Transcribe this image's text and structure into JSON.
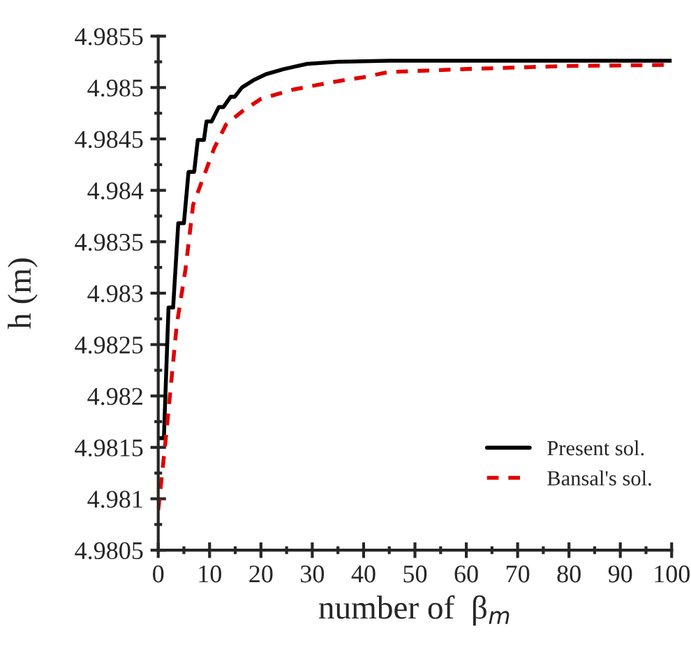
{
  "chart_data": {
    "type": "line",
    "xlabel": "number of  β$_{m}$",
    "ylabel": "h (m)",
    "xlim": [
      0,
      100
    ],
    "ylim": [
      4.9805,
      4.9855
    ],
    "xticks": [
      0,
      {
        "value": 5,
        "label": null
      },
      10,
      {
        "value": 15,
        "label": null
      },
      20,
      {
        "value": 25,
        "label": null
      },
      30,
      {
        "value": 35,
        "label": null
      },
      40,
      {
        "value": 45,
        "label": null
      },
      50,
      {
        "value": 55,
        "label": null
      },
      60,
      {
        "value": 65,
        "label": null
      },
      70,
      {
        "value": 75,
        "label": null
      },
      80,
      {
        "value": 85,
        "label": null
      },
      90,
      {
        "value": 95,
        "label": null
      },
      100
    ],
    "yticks": [
      4.9805,
      {
        "value": 4.98075,
        "label": null
      },
      4.981,
      {
        "value": 4.98125,
        "label": null
      },
      4.9815,
      {
        "value": 4.98175,
        "label": null
      },
      4.982,
      {
        "value": 4.98225,
        "label": null
      },
      4.9825,
      {
        "value": 4.98275,
        "label": null
      },
      4.983,
      {
        "value": 4.98325,
        "label": null
      },
      4.9835,
      {
        "value": 4.98375,
        "label": null
      },
      4.984,
      {
        "value": 4.98425,
        "label": null
      },
      4.9845,
      {
        "value": 4.98475,
        "label": null
      },
      4.985,
      {
        "value": 4.98525,
        "label": null
      },
      4.9855
    ],
    "grid": false,
    "legend": "bottom right",
    "marker": "none",
    "series": [
      {
        "name": "Present sol.",
        "color": "#000000",
        "line_style": "solid",
        "x": [
          0,
          1.1,
          2.0,
          2.9,
          3.9,
          5.0,
          5.9,
          7.0,
          7.7,
          8.9,
          9.4,
          10.4,
          11.8,
          12.7,
          14.1,
          14.9,
          16.3,
          18.5,
          21,
          24.5,
          29,
          35,
          45,
          100
        ],
        "values": [
          4.98159,
          4.98159,
          4.98286,
          4.98286,
          4.98368,
          4.98368,
          4.98418,
          4.98418,
          4.98449,
          4.98449,
          4.98467,
          4.98467,
          4.98481,
          4.98481,
          4.98491,
          4.98491,
          4.985,
          4.98507,
          4.98513,
          4.98518,
          4.98523,
          4.98525,
          4.98526,
          4.98526
        ]
      },
      {
        "name": "Bansal's sol.",
        "color": "#e00000",
        "line_style": "dashed",
        "x": [
          0,
          1.4,
          3.6,
          5.3,
          6.8,
          8.9,
          10.9,
          13.2,
          16.4,
          20,
          26.3,
          33.6,
          39.9,
          44.8,
          60,
          80,
          100
        ],
        "values": [
          4.98089,
          4.98155,
          4.98269,
          4.98323,
          4.98386,
          4.98414,
          4.98441,
          4.98464,
          4.98477,
          4.98489,
          4.98498,
          4.98505,
          4.9851,
          4.98515,
          4.98518,
          4.98521,
          4.98522
        ]
      }
    ]
  }
}
